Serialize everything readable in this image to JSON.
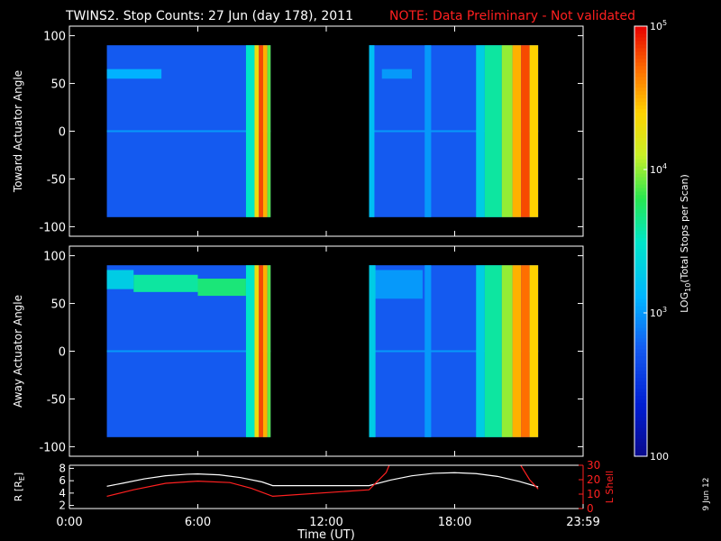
{
  "header": {
    "title": "TWINS2. Stop Counts: 27 Jun (day 178), 2011",
    "note": "NOTE: Data Preliminary - Not validated",
    "note_color": "#ff2020"
  },
  "side_stamp": "9 Jun 12",
  "colorbar": {
    "label": "LOG10(Total Stops per Scan)",
    "label_main": "LOG",
    "label_sub": "10",
    "label_rest": "(Total Stops per Scan)",
    "scale": "log",
    "min": 100,
    "max": 100000,
    "tick_labels": [
      {
        "v": 100000,
        "base": "10",
        "exp": "5"
      },
      {
        "v": 10000,
        "base": "10",
        "exp": "4"
      },
      {
        "v": 1000,
        "base": "10",
        "exp": "3"
      },
      {
        "v": 100,
        "base": "100",
        "exp": ""
      }
    ]
  },
  "chart_data": [
    {
      "type": "heatmap",
      "ylabel": "Toward Actuator Angle",
      "ylim": [
        -110,
        110
      ],
      "yticks": [
        100,
        50,
        0,
        -50,
        -100
      ],
      "x_unit": "hours UT",
      "xlim": [
        0,
        24
      ],
      "scan_blocks": [
        [
          1.75,
          9.4
        ],
        [
          14.0,
          21.9
        ]
      ],
      "angle_range": [
        -90,
        90
      ],
      "background_log10": 2.75,
      "bright_bands_log10": [
        {
          "t": [
            8.25,
            8.65
          ],
          "v": 3.5
        },
        {
          "t": [
            8.65,
            8.85
          ],
          "v": 4.3
        },
        {
          "t": [
            8.85,
            9.05
          ],
          "v": 4.8
        },
        {
          "t": [
            9.05,
            9.25
          ],
          "v": 4.5
        },
        {
          "t": [
            9.25,
            9.4
          ],
          "v": 3.9
        },
        {
          "t": [
            14.0,
            14.25
          ],
          "v": 3.2
        },
        {
          "t": [
            16.6,
            16.9
          ],
          "v": 3.0
        },
        {
          "t": [
            19.0,
            19.4
          ],
          "v": 3.3
        },
        {
          "t": [
            19.4,
            20.2
          ],
          "v": 3.6
        },
        {
          "t": [
            20.2,
            20.7
          ],
          "v": 4.0
        },
        {
          "t": [
            20.7,
            21.1
          ],
          "v": 4.5
        },
        {
          "t": [
            21.1,
            21.5
          ],
          "v": 4.8
        },
        {
          "t": [
            21.5,
            21.9
          ],
          "v": 4.4
        }
      ],
      "angle_bands_log10": [
        {
          "t": [
            1.75,
            4.3
          ],
          "a": [
            55,
            65
          ],
          "v": 3.1
        },
        {
          "t": [
            14.6,
            16.0
          ],
          "a": [
            55,
            65
          ],
          "v": 3.0
        }
      ]
    },
    {
      "type": "heatmap",
      "ylabel": "Away Actuator Angle",
      "ylim": [
        -110,
        110
      ],
      "yticks": [
        100,
        50,
        0,
        -50,
        -100
      ],
      "x_unit": "hours UT",
      "xlim": [
        0,
        24
      ],
      "scan_blocks": [
        [
          1.75,
          9.4
        ],
        [
          14.0,
          21.9
        ]
      ],
      "angle_range": [
        -90,
        90
      ],
      "background_log10": 2.75,
      "bright_bands_log10": [
        {
          "t": [
            8.25,
            8.65
          ],
          "v": 3.5
        },
        {
          "t": [
            8.65,
            8.85
          ],
          "v": 4.3
        },
        {
          "t": [
            8.85,
            9.05
          ],
          "v": 4.8
        },
        {
          "t": [
            9.05,
            9.25
          ],
          "v": 4.5
        },
        {
          "t": [
            9.25,
            9.4
          ],
          "v": 3.9
        },
        {
          "t": [
            14.0,
            14.3
          ],
          "v": 3.3
        },
        {
          "t": [
            16.6,
            16.9
          ],
          "v": 3.0
        },
        {
          "t": [
            19.0,
            19.4
          ],
          "v": 3.3
        },
        {
          "t": [
            19.4,
            20.2
          ],
          "v": 3.6
        },
        {
          "t": [
            20.2,
            20.7
          ],
          "v": 4.0
        },
        {
          "t": [
            20.7,
            21.1
          ],
          "v": 4.5
        },
        {
          "t": [
            21.1,
            21.5
          ],
          "v": 4.7
        },
        {
          "t": [
            21.5,
            21.9
          ],
          "v": 4.4
        }
      ],
      "angle_bands_log10": [
        {
          "t": [
            1.75,
            3.0
          ],
          "a": [
            65,
            85
          ],
          "v": 3.3
        },
        {
          "t": [
            3.0,
            6.0
          ],
          "a": [
            62,
            80
          ],
          "v": 3.6
        },
        {
          "t": [
            6.0,
            8.25
          ],
          "a": [
            58,
            76
          ],
          "v": 3.7
        },
        {
          "t": [
            14.0,
            16.5
          ],
          "a": [
            55,
            85
          ],
          "v": 3.0
        }
      ]
    },
    {
      "type": "line",
      "ylabel": "R [RE]",
      "ylabel_main": "R [R",
      "ylabel_sub": "E",
      "ylabel_end": "]",
      "y2label": "L Shell",
      "xlabel": "Time (UT)",
      "xlim": [
        0,
        24
      ],
      "xticks": [
        0,
        6,
        12,
        18,
        24
      ],
      "xtick_labels": [
        "0:00",
        "6:00",
        "12:00",
        "18:00",
        "23:59"
      ],
      "ylim": [
        1.5,
        8.5
      ],
      "yticks": [
        2,
        4,
        6,
        8
      ],
      "y2lim": [
        0,
        30
      ],
      "y2ticks": [
        0,
        10,
        20,
        30
      ],
      "series": [
        {
          "name": "R",
          "color": "#ffffff",
          "axis": "left",
          "x": [
            1.75,
            2.5,
            3.5,
            4.5,
            5.5,
            6.0,
            7.0,
            8.0,
            9.0,
            9.5,
            14.0,
            15.0,
            16.0,
            17.0,
            18.0,
            19.0,
            20.0,
            21.0,
            21.9
          ],
          "y": [
            5.1,
            5.6,
            6.3,
            6.8,
            7.05,
            7.1,
            6.95,
            6.5,
            5.8,
            5.2,
            5.2,
            6.1,
            6.8,
            7.2,
            7.3,
            7.15,
            6.7,
            5.9,
            5.0
          ]
        },
        {
          "name": "L Shell",
          "color": "#ff2020",
          "axis": "right",
          "x": [
            1.75,
            3.0,
            4.5,
            6.0,
            7.5,
            8.5,
            9.5,
            14.0,
            14.8,
            15.0
          ],
          "y": [
            8.5,
            13.0,
            17.5,
            19.0,
            18.0,
            14.0,
            8.5,
            13.0,
            25.0,
            32.0
          ],
          "x2": [
            21.0,
            21.5,
            21.9
          ],
          "y2": [
            32.0,
            20.0,
            13.5
          ]
        }
      ]
    }
  ]
}
